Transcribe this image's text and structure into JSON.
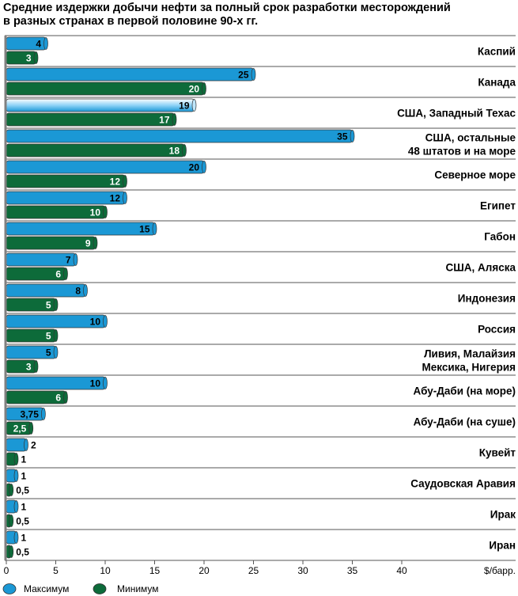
{
  "chart_data": {
    "type": "bar",
    "orientation": "horizontal",
    "title": "Средние издержки добычи нефти за полный срок разработки месторождений",
    "subtitle": "в разных странах в первой половине 90-х гг.",
    "xlabel": "$/барр.",
    "xlim": [
      0,
      40
    ],
    "xticks": [
      "0",
      "5",
      "10",
      "15",
      "20",
      "25",
      "30",
      "35",
      "40"
    ],
    "grid": "horizontal separators between categories",
    "legend_position": "bottom-left",
    "colors": {
      "max": "#1b98d5",
      "min": "#0d6b3a",
      "highlight": "#8fd3f7"
    },
    "categories": [
      [
        "Каспий"
      ],
      [
        "Канада"
      ],
      [
        "США, Западный Техас"
      ],
      [
        "США, остальные",
        "48 штатов и на море"
      ],
      [
        "Северное море"
      ],
      [
        "Египет"
      ],
      [
        "Габон"
      ],
      [
        "США, Аляска"
      ],
      [
        "Индонезия"
      ],
      [
        "Россия"
      ],
      [
        "Ливия, Малайзия",
        "Мексика, Нигерия"
      ],
      [
        "Абу-Даби (на море)"
      ],
      [
        "Абу-Даби (на суше)"
      ],
      [
        "Кувейт"
      ],
      [
        "Саудовская Аравия"
      ],
      [
        "Ирак"
      ],
      [
        "Иран"
      ]
    ],
    "series": [
      {
        "name": "Максимум",
        "values": [
          4,
          25,
          19,
          35,
          20,
          12,
          15,
          7,
          8,
          10,
          5,
          10,
          3.75,
          2,
          1,
          1,
          1
        ],
        "labels": [
          "4",
          "25",
          "19",
          "35",
          "20",
          "12",
          "15",
          "7",
          "8",
          "10",
          "5",
          "10",
          "3,75",
          "2",
          "1",
          "1",
          "1"
        ]
      },
      {
        "name": "Минимум",
        "values": [
          3,
          20,
          17,
          18,
          12,
          10,
          9,
          6,
          5,
          5,
          3,
          6,
          2.5,
          1,
          0.5,
          0.5,
          0.5
        ],
        "labels": [
          "3",
          "20",
          "17",
          "18",
          "12",
          "10",
          "9",
          "6",
          "5",
          "5",
          "3",
          "6",
          "2,5",
          "1",
          "0,5",
          "0,5",
          "0,5"
        ]
      }
    ],
    "highlight_category_index": 2
  }
}
